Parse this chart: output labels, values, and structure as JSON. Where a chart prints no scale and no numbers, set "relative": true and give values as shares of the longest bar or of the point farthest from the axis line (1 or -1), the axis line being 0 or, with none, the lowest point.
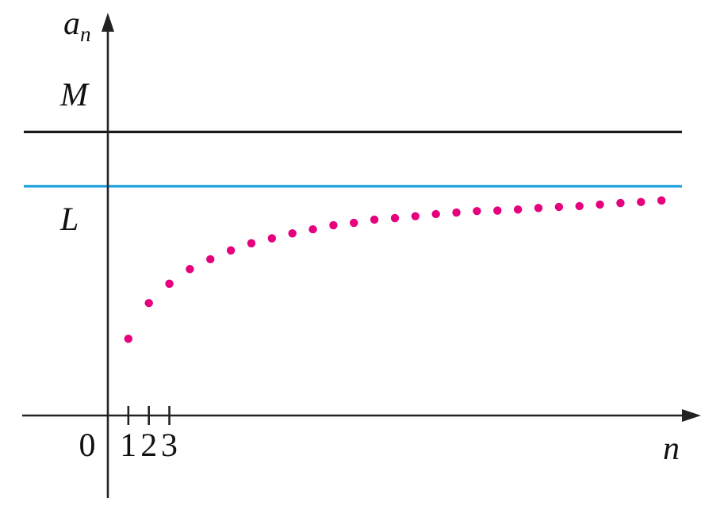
{
  "chart_data": {
    "type": "scatter",
    "relative": true,
    "xlabel": "n",
    "ylabel": "a$_{n}$",
    "x": [
      1,
      2,
      3,
      4,
      5,
      6,
      7,
      8,
      9,
      10,
      11,
      12,
      13,
      14,
      15,
      16,
      17,
      18,
      19,
      20,
      21,
      22,
      23,
      24,
      25,
      26,
      27
    ],
    "values": [
      0.357,
      0.523,
      0.613,
      0.681,
      0.727,
      0.768,
      0.801,
      0.824,
      0.847,
      0.866,
      0.885,
      0.896,
      0.911,
      0.918,
      0.927,
      0.937,
      0.944,
      0.951,
      0.953,
      0.958,
      0.965,
      0.97,
      0.974,
      0.981,
      0.988,
      0.993,
      1
    ],
    "color": "#e6007e",
    "marker": "circle",
    "xlim": [
      0,
      28
    ],
    "xticks": [
      0,
      1,
      2,
      3
    ],
    "grid": false,
    "legend": false,
    "ref_lines": [
      {
        "axis": "y",
        "value": 1.319,
        "label": "M",
        "color": "#1a1a1a"
      },
      {
        "axis": "y",
        "value": 1.066,
        "label": "L",
        "color": "#1ba1dc"
      }
    ]
  }
}
